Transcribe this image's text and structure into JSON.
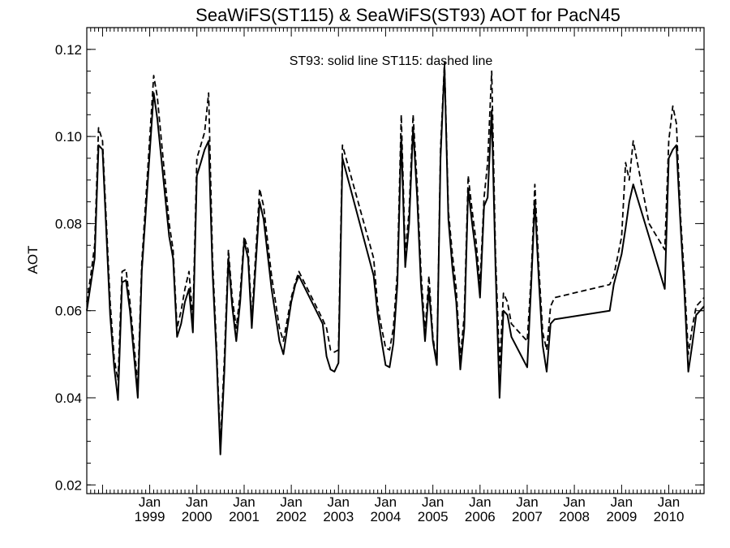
{
  "chart_data": {
    "type": "line",
    "title": "SeaWiFS(ST115) & SeaWiFS(ST93)  AOT for PacN45",
    "ylabel": "AOT",
    "xlabel": "",
    "annotation": "ST93: solid line   ST115: dashed line",
    "ylim": [
      0.018,
      0.125
    ],
    "xlim": [
      "1997-09-01",
      "2010-10-01"
    ],
    "grid": false,
    "y_ticks": [
      0.02,
      0.04,
      0.06,
      0.08,
      0.1,
      0.12
    ],
    "y_tick_labels": [
      "0.02",
      "0.04",
      "0.06",
      "0.08",
      "0.10",
      "0.12"
    ],
    "x_ticks": [
      {
        "date": "1999-01-01",
        "month": "Jan",
        "year": "1999"
      },
      {
        "date": "2000-01-01",
        "month": "Jan",
        "year": "2000"
      },
      {
        "date": "2001-01-01",
        "month": "Jan",
        "year": "2001"
      },
      {
        "date": "2002-01-01",
        "month": "Jan",
        "year": "2002"
      },
      {
        "date": "2003-01-01",
        "month": "Jan",
        "year": "2003"
      },
      {
        "date": "2004-01-01",
        "month": "Jan",
        "year": "2004"
      },
      {
        "date": "2005-01-01",
        "month": "Jan",
        "year": "2005"
      },
      {
        "date": "2006-01-01",
        "month": "Jan",
        "year": "2006"
      },
      {
        "date": "2007-01-01",
        "month": "Jan",
        "year": "2007"
      },
      {
        "date": "2008-01-01",
        "month": "Jan",
        "year": "2008"
      },
      {
        "date": "2009-01-01",
        "month": "Jan",
        "year": "2009"
      },
      {
        "date": "2010-01-01",
        "month": "Jan",
        "year": "2010"
      }
    ],
    "series": [
      {
        "name": "ST93",
        "style": "solid",
        "x": [
          "1997-09-01",
          "1997-10-01",
          "1997-11-01",
          "1997-12-01",
          "1998-01-01",
          "1998-03-01",
          "1998-04-01",
          "1998-05-01",
          "1998-06-01",
          "1998-07-01",
          "1998-08-01",
          "1998-10-01",
          "1998-11-01",
          "1999-02-01",
          "1999-03-01",
          "1999-06-01",
          "1999-07-01",
          "1999-08-01",
          "1999-09-01",
          "1999-10-01",
          "1999-11-01",
          "1999-12-01",
          "2000-01-01",
          "2000-02-01",
          "2000-03-01",
          "2000-04-01",
          "2000-05-01",
          "2000-06-01",
          "2000-07-01",
          "2000-08-01",
          "2000-09-01",
          "2000-10-01",
          "2000-11-01",
          "2000-12-01",
          "2001-01-01",
          "2001-02-01",
          "2001-03-01",
          "2001-05-01",
          "2001-06-01",
          "2001-08-01",
          "2001-09-01",
          "2001-10-01",
          "2001-11-01",
          "2001-12-01",
          "2002-01-01",
          "2002-02-01",
          "2002-03-01",
          "2002-09-01",
          "2002-10-01",
          "2002-11-01",
          "2002-12-01",
          "2003-01-01",
          "2003-02-01",
          "2003-10-01",
          "2003-11-01",
          "2003-12-01",
          "2004-01-01",
          "2004-02-01",
          "2004-03-01",
          "2004-04-01",
          "2004-05-01",
          "2004-06-01",
          "2004-07-01",
          "2004-08-01",
          "2004-09-01",
          "2004-10-01",
          "2004-11-01",
          "2004-12-01",
          "2005-01-01",
          "2005-02-01",
          "2005-03-01",
          "2005-04-01",
          "2005-05-01",
          "2005-06-01",
          "2005-07-01",
          "2005-08-01",
          "2005-09-01",
          "2005-10-01",
          "2005-11-01",
          "2005-12-01",
          "2006-01-01",
          "2006-02-01",
          "2006-03-01",
          "2006-04-01",
          "2006-05-01",
          "2006-06-01",
          "2006-07-01",
          "2006-08-01",
          "2006-09-01",
          "2007-01-01",
          "2007-02-01",
          "2007-03-01",
          "2007-04-01",
          "2007-05-01",
          "2007-06-01",
          "2007-07-01",
          "2007-08-01",
          "2008-10-01",
          "2008-11-01",
          "2009-01-01",
          "2009-02-01",
          "2009-03-01",
          "2009-04-01",
          "2009-08-01",
          "2009-12-01",
          "2010-01-01",
          "2010-02-01",
          "2010-03-01",
          "2010-04-01",
          "2010-05-01",
          "2010-06-01",
          "2010-07-01",
          "2010-08-01",
          "2010-09-01",
          "2010-10-01"
        ],
        "y": [
          0.06,
          0.066,
          0.072,
          0.098,
          0.097,
          0.059,
          0.047,
          0.0395,
          0.0665,
          0.067,
          0.06,
          0.04,
          0.069,
          0.11,
          0.104,
          0.077,
          0.072,
          0.054,
          0.057,
          0.062,
          0.065,
          0.055,
          0.091,
          0.094,
          0.097,
          0.099,
          0.069,
          0.05,
          0.027,
          0.046,
          0.072,
          0.061,
          0.053,
          0.062,
          0.076,
          0.072,
          0.056,
          0.085,
          0.081,
          0.065,
          0.059,
          0.053,
          0.05,
          0.056,
          0.062,
          0.066,
          0.068,
          0.057,
          0.0495,
          0.0465,
          0.046,
          0.048,
          0.095,
          0.068,
          0.059,
          0.053,
          0.0475,
          0.047,
          0.0525,
          0.066,
          0.1,
          0.07,
          0.08,
          0.102,
          0.086,
          0.066,
          0.053,
          0.065,
          0.053,
          0.0475,
          0.095,
          0.116,
          0.081,
          0.07,
          0.062,
          0.0465,
          0.056,
          0.088,
          0.08,
          0.073,
          0.063,
          0.084,
          0.086,
          0.106,
          0.07,
          0.04,
          0.06,
          0.059,
          0.054,
          0.047,
          0.066,
          0.085,
          0.067,
          0.052,
          0.046,
          0.057,
          0.058,
          0.06,
          0.066,
          0.073,
          0.079,
          0.085,
          0.089,
          0.077,
          0.065,
          0.095,
          0.097,
          0.098,
          0.08,
          0.065,
          0.046,
          0.052,
          0.059,
          0.06,
          0.061
        ]
      },
      {
        "name": "ST115",
        "style": "dashed",
        "x": [
          "1997-09-01",
          "1997-10-01",
          "1997-11-01",
          "1997-12-01",
          "1998-01-01",
          "1998-03-01",
          "1998-04-01",
          "1998-05-01",
          "1998-06-01",
          "1998-07-01",
          "1998-08-01",
          "1998-10-01",
          "1998-11-01",
          "1999-02-01",
          "1999-03-01",
          "1999-06-01",
          "1999-07-01",
          "1999-08-01",
          "1999-09-01",
          "1999-10-01",
          "1999-11-01",
          "1999-12-01",
          "2000-01-01",
          "2000-02-01",
          "2000-03-01",
          "2000-04-01",
          "2000-05-01",
          "2000-06-01",
          "2000-07-01",
          "2000-08-01",
          "2000-09-01",
          "2000-10-01",
          "2000-11-01",
          "2000-12-01",
          "2001-01-01",
          "2001-02-01",
          "2001-03-01",
          "2001-05-01",
          "2001-06-01",
          "2001-08-01",
          "2001-09-01",
          "2001-10-01",
          "2001-11-01",
          "2001-12-01",
          "2002-01-01",
          "2002-02-01",
          "2002-03-01",
          "2002-09-01",
          "2002-10-01",
          "2002-11-01",
          "2002-12-01",
          "2003-01-01",
          "2003-02-01",
          "2003-10-01",
          "2003-11-01",
          "2003-12-01",
          "2004-01-01",
          "2004-02-01",
          "2004-03-01",
          "2004-04-01",
          "2004-05-01",
          "2004-06-01",
          "2004-07-01",
          "2004-08-01",
          "2004-09-01",
          "2004-10-01",
          "2004-11-01",
          "2004-12-01",
          "2005-01-01",
          "2005-02-01",
          "2005-03-01",
          "2005-04-01",
          "2005-05-01",
          "2005-06-01",
          "2005-07-01",
          "2005-08-01",
          "2005-09-01",
          "2005-10-01",
          "2005-11-01",
          "2005-12-01",
          "2006-01-01",
          "2006-02-01",
          "2006-03-01",
          "2006-04-01",
          "2006-05-01",
          "2006-06-01",
          "2006-07-01",
          "2006-08-01",
          "2006-09-01",
          "2007-01-01",
          "2007-02-01",
          "2007-03-01",
          "2007-04-01",
          "2007-05-01",
          "2007-06-01",
          "2007-07-01",
          "2007-08-01",
          "2008-10-01",
          "2008-11-01",
          "2009-01-01",
          "2009-02-01",
          "2009-03-01",
          "2009-04-01",
          "2009-08-01",
          "2009-12-01",
          "2010-01-01",
          "2010-02-01",
          "2010-03-01",
          "2010-04-01",
          "2010-05-01",
          "2010-06-01",
          "2010-07-01",
          "2010-08-01",
          "2010-09-01",
          "2010-10-01"
        ],
        "y": [
          0.062,
          0.068,
          0.075,
          0.102,
          0.099,
          0.062,
          0.049,
          0.044,
          0.069,
          0.0695,
          0.062,
          0.043,
          0.071,
          0.114,
          0.109,
          0.08,
          0.074,
          0.056,
          0.06,
          0.065,
          0.069,
          0.058,
          0.095,
          0.098,
          0.101,
          0.11,
          0.072,
          0.052,
          0.029,
          0.049,
          0.074,
          0.063,
          0.056,
          0.064,
          0.077,
          0.074,
          0.058,
          0.088,
          0.084,
          0.068,
          0.062,
          0.056,
          0.053,
          0.058,
          0.063,
          0.0665,
          0.069,
          0.058,
          0.056,
          0.051,
          0.0505,
          0.051,
          0.098,
          0.072,
          0.061,
          0.056,
          0.0515,
          0.051,
          0.056,
          0.069,
          0.105,
          0.073,
          0.083,
          0.105,
          0.089,
          0.069,
          0.055,
          0.068,
          0.054,
          0.048,
          0.097,
          0.117,
          0.083,
          0.073,
          0.065,
          0.049,
          0.059,
          0.091,
          0.083,
          0.076,
          0.066,
          0.086,
          0.094,
          0.115,
          0.073,
          0.047,
          0.064,
          0.062,
          0.057,
          0.053,
          0.068,
          0.089,
          0.07,
          0.055,
          0.051,
          0.061,
          0.063,
          0.066,
          0.068,
          0.077,
          0.094,
          0.09,
          0.099,
          0.08,
          0.074,
          0.099,
          0.107,
          0.103,
          0.082,
          0.068,
          0.05,
          0.056,
          0.061,
          0.062,
          0.063
        ]
      }
    ]
  }
}
